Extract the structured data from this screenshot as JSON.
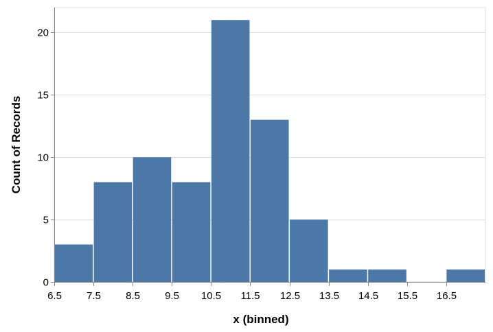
{
  "chart_data": {
    "type": "bar",
    "bins": [
      {
        "start": 6.5,
        "end": 7.5,
        "count": 3
      },
      {
        "start": 7.5,
        "end": 8.5,
        "count": 8
      },
      {
        "start": 8.5,
        "end": 9.5,
        "count": 10
      },
      {
        "start": 9.5,
        "end": 10.5,
        "count": 8
      },
      {
        "start": 10.5,
        "end": 11.5,
        "count": 21
      },
      {
        "start": 11.5,
        "end": 12.5,
        "count": 13
      },
      {
        "start": 12.5,
        "end": 13.5,
        "count": 5
      },
      {
        "start": 13.5,
        "end": 14.5,
        "count": 1
      },
      {
        "start": 14.5,
        "end": 15.5,
        "count": 1
      },
      {
        "start": 15.5,
        "end": 16.5,
        "count": 0
      },
      {
        "start": 16.5,
        "end": 17.5,
        "count": 1
      }
    ],
    "x_ticks": [
      "6.5",
      "7.5",
      "8.5",
      "9.5",
      "10.5",
      "11.5",
      "12.5",
      "13.5",
      "14.5",
      "15.5",
      "16.5"
    ],
    "y_ticks": [
      "0",
      "5",
      "10",
      "15",
      "20"
    ],
    "xlabel": "x (binned)",
    "ylabel": "Count of Records",
    "xlim": [
      6.5,
      17.5
    ],
    "ylim": [
      0,
      22
    ],
    "grid": true,
    "bar_color": "#4c78a8"
  }
}
